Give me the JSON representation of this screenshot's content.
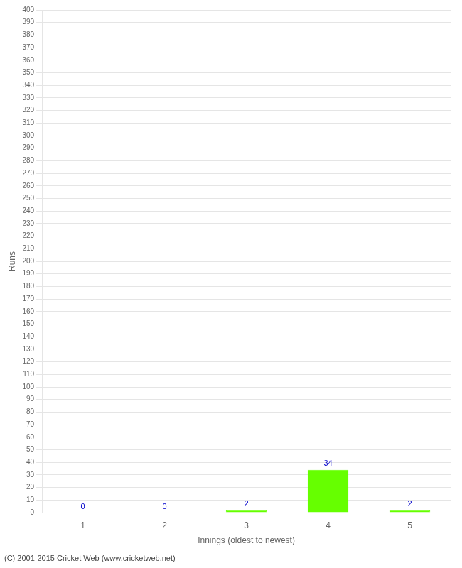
{
  "chart_data": {
    "type": "bar",
    "xlabel": "Innings (oldest to newest)",
    "ylabel": "Runs",
    "categories": [
      1,
      2,
      3,
      4,
      5
    ],
    "values": [
      0,
      0,
      2,
      34,
      2
    ],
    "color": "#66ff00",
    "ylim": [
      0,
      400
    ],
    "yticks": [
      0,
      10,
      20,
      30,
      40,
      50,
      60,
      70,
      80,
      90,
      100,
      110,
      120,
      130,
      140,
      150,
      160,
      170,
      180,
      190,
      200,
      210,
      220,
      230,
      240,
      250,
      260,
      270,
      280,
      290,
      300,
      310,
      320,
      330,
      340,
      350,
      360,
      370,
      380,
      390,
      400
    ],
    "grid": true,
    "data_labels": true,
    "footnote": "(C) 2001-2015 Cricket Web (www.cricketweb.net)"
  }
}
